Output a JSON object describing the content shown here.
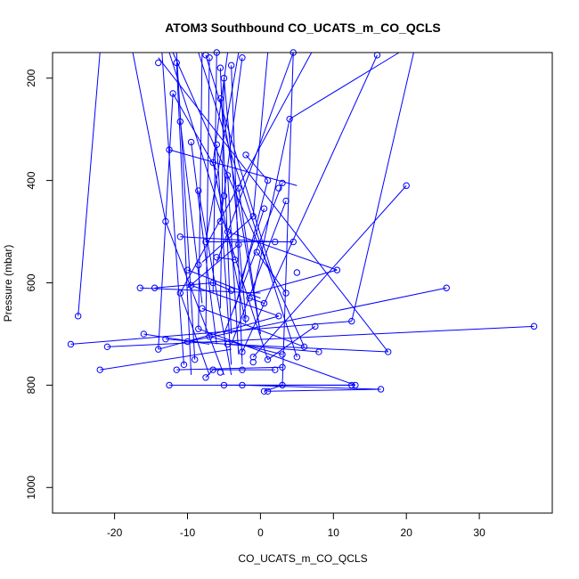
{
  "chart_data": {
    "type": "scatter",
    "title": "ATOM3 Southbound CO_UCATS_m_CO_QCLS",
    "xlabel": "CO_UCATS_m_CO_QCLS",
    "ylabel": "Pressure (mbar)",
    "xlim": [
      -28.5,
      40
    ],
    "ylim": [
      150,
      1050
    ],
    "y_reversed": true,
    "x_ticks": [
      -20,
      -10,
      0,
      10,
      20,
      30
    ],
    "y_ticks": [
      200,
      400,
      600,
      800,
      1000
    ],
    "series_color": "#0000ff",
    "marker": "open-circle",
    "connected": true,
    "points": [
      [
        -6.0,
        150
      ],
      [
        -14.0,
        170
      ],
      [
        -5.5,
        180
      ],
      [
        -4.0,
        175
      ],
      [
        -11.5,
        170
      ],
      [
        -7.0,
        160
      ],
      [
        -5.0,
        200
      ],
      [
        -11.0,
        285
      ],
      [
        -9.5,
        325
      ],
      [
        -12.5,
        340
      ],
      [
        -6.5,
        365
      ],
      [
        -8.5,
        420
      ],
      [
        -4.5,
        390
      ],
      [
        -3.0,
        415
      ],
      [
        -5.0,
        430
      ],
      [
        -2.0,
        350
      ],
      [
        1.0,
        400
      ],
      [
        4.0,
        280
      ],
      [
        3.0,
        405
      ],
      [
        2.5,
        415
      ],
      [
        3.5,
        440
      ],
      [
        0.5,
        455
      ],
      [
        -1.0,
        470
      ],
      [
        -5.5,
        480
      ],
      [
        -13.0,
        480
      ],
      [
        -11.0,
        510
      ],
      [
        -7.5,
        520
      ],
      [
        -3.0,
        525
      ],
      [
        -0.5,
        540
      ],
      [
        2.0,
        520
      ],
      [
        4.5,
        520
      ],
      [
        5.0,
        580
      ],
      [
        3.5,
        620
      ],
      [
        10.5,
        575
      ],
      [
        -10.0,
        575
      ],
      [
        -8.5,
        565
      ],
      [
        -16.5,
        610
      ],
      [
        -14.5,
        610
      ],
      [
        -11.0,
        620
      ],
      [
        -9.5,
        605
      ],
      [
        -6.5,
        600
      ],
      [
        -4.0,
        615
      ],
      [
        -1.5,
        630
      ],
      [
        0.5,
        640
      ],
      [
        2.5,
        665
      ],
      [
        -25.0,
        665
      ],
      [
        -26.0,
        720
      ],
      [
        -21.0,
        725
      ],
      [
        -16.0,
        700
      ],
      [
        -13.0,
        710
      ],
      [
        -10.0,
        715
      ],
      [
        -8.5,
        690
      ],
      [
        -7.0,
        705
      ],
      [
        -4.5,
        720
      ],
      [
        -2.5,
        735
      ],
      [
        -1.0,
        745
      ],
      [
        1.0,
        750
      ],
      [
        3.0,
        740
      ],
      [
        5.0,
        745
      ],
      [
        8.0,
        735
      ],
      [
        12.5,
        675
      ],
      [
        25.5,
        610
      ],
      [
        37.5,
        685
      ],
      [
        7.5,
        685
      ],
      [
        6.0,
        725
      ],
      [
        -22.0,
        770
      ],
      [
        -14.0,
        730
      ],
      [
        -11.5,
        770
      ],
      [
        -10.5,
        760
      ],
      [
        -9.0,
        750
      ],
      [
        -7.5,
        785
      ],
      [
        -6.5,
        770
      ],
      [
        -5.5,
        775
      ],
      [
        -2.5,
        770
      ],
      [
        -1.0,
        755
      ],
      [
        2.0,
        770
      ],
      [
        3.0,
        765
      ],
      [
        -12.5,
        800
      ],
      [
        -5.0,
        800
      ],
      [
        -2.5,
        800
      ],
      [
        0.5,
        812
      ],
      [
        1.0,
        812
      ],
      [
        3.0,
        800
      ],
      [
        12.5,
        800
      ],
      [
        13.0,
        800
      ],
      [
        16.5,
        808
      ],
      [
        17.5,
        735
      ],
      [
        20.0,
        410
      ],
      [
        16.0,
        155
      ],
      [
        4.5,
        150
      ],
      [
        -7.5,
        155
      ],
      [
        -2.5,
        160
      ],
      [
        -6.0,
        330
      ],
      [
        -5.5,
        240
      ],
      [
        -12.0,
        230
      ],
      [
        -4.5,
        500
      ],
      [
        -3.5,
        555
      ],
      [
        -6.0,
        550
      ],
      [
        -8.0,
        650
      ],
      [
        -2.0,
        670
      ]
    ],
    "segments": [
      [
        -6.0,
        150,
        -6.5,
        620
      ],
      [
        -5.5,
        180,
        -4.0,
        700
      ],
      [
        -4.0,
        175,
        -2.5,
        760
      ],
      [
        -11.5,
        170,
        -9.5,
        780
      ],
      [
        -7.0,
        160,
        -7.5,
        700
      ],
      [
        -5.0,
        200,
        -5.5,
        650
      ],
      [
        -11.0,
        285,
        -8.0,
        640
      ],
      [
        -9.5,
        325,
        -6.0,
        720
      ],
      [
        -12.5,
        340,
        5.0,
        410
      ],
      [
        -6.5,
        365,
        -2.0,
        680
      ],
      [
        -8.5,
        420,
        -4.0,
        780
      ],
      [
        -4.5,
        390,
        -3.0,
        740
      ],
      [
        -3.0,
        415,
        0.0,
        700
      ],
      [
        -2.0,
        350,
        1.0,
        400
      ],
      [
        1.0,
        400,
        -3.5,
        650
      ],
      [
        4.0,
        280,
        -1.0,
        620
      ],
      [
        3.0,
        405,
        -5.0,
        700
      ],
      [
        3.5,
        440,
        -4.0,
        720
      ],
      [
        0.5,
        455,
        -3.0,
        610
      ],
      [
        -1.0,
        470,
        -8.0,
        560
      ],
      [
        -13.0,
        480,
        -5.0,
        780
      ],
      [
        -11.0,
        510,
        2.0,
        520
      ],
      [
        -7.5,
        520,
        4.5,
        520
      ],
      [
        -3.0,
        525,
        -10.0,
        610
      ],
      [
        -0.5,
        540,
        3.5,
        620
      ],
      [
        10.5,
        575,
        -1.0,
        620
      ],
      [
        -10.0,
        575,
        0.0,
        630
      ],
      [
        -16.5,
        610,
        0.0,
        620
      ],
      [
        -14.5,
        610,
        -6.5,
        600
      ],
      [
        -11.0,
        620,
        -7.0,
        780
      ],
      [
        -25.0,
        665,
        -22.0,
        150
      ],
      [
        -26.0,
        720,
        12.5,
        675
      ],
      [
        -21.0,
        725,
        37.5,
        685
      ],
      [
        -16.0,
        700,
        -7.0,
        720
      ],
      [
        -13.0,
        710,
        8.0,
        735
      ],
      [
        -10.0,
        715,
        25.5,
        610
      ],
      [
        -8.5,
        690,
        13.0,
        800
      ],
      [
        -7.0,
        705,
        3.0,
        740
      ],
      [
        -4.5,
        720,
        17.5,
        735
      ],
      [
        -2.5,
        735,
        16.0,
        155
      ],
      [
        -1.0,
        745,
        20.0,
        410
      ],
      [
        1.0,
        750,
        7.5,
        685
      ],
      [
        5.0,
        745,
        -8.5,
        150
      ],
      [
        6.0,
        725,
        -12.0,
        150
      ],
      [
        -22.0,
        770,
        -4.0,
        730
      ],
      [
        -14.0,
        730,
        -12.0,
        230
      ],
      [
        -11.5,
        770,
        3.0,
        765
      ],
      [
        -10.5,
        760,
        -13.5,
        150
      ],
      [
        -9.0,
        750,
        -11.5,
        150
      ],
      [
        -7.5,
        785,
        -6.5,
        770
      ],
      [
        -6.5,
        770,
        2.0,
        770
      ],
      [
        -12.5,
        800,
        13.0,
        800
      ],
      [
        -5.0,
        800,
        12.5,
        800
      ],
      [
        -2.5,
        800,
        16.5,
        808
      ],
      [
        0.5,
        812,
        3.0,
        800
      ],
      [
        1.0,
        812,
        16.5,
        808
      ],
      [
        3.0,
        800,
        4.5,
        150
      ],
      [
        4.5,
        150,
        -6.0,
        560
      ],
      [
        -7.5,
        155,
        2.0,
        600
      ],
      [
        -2.5,
        160,
        -5.5,
        480
      ],
      [
        -6.0,
        330,
        -4.0,
        760
      ],
      [
        -5.5,
        240,
        0.0,
        700
      ],
      [
        -12.0,
        230,
        -6.0,
        380
      ],
      [
        -4.5,
        500,
        10.5,
        575
      ],
      [
        -3.5,
        555,
        -6.0,
        550
      ],
      [
        -8.0,
        650,
        6.0,
        725
      ],
      [
        -2.0,
        670,
        -5.0,
        200
      ],
      [
        -9.5,
        605,
        2.5,
        665
      ],
      [
        -6.5,
        600,
        -4.0,
        615
      ],
      [
        -1.5,
        630,
        0.5,
        640
      ],
      [
        2.5,
        665,
        -14.0,
        730
      ],
      [
        -17.5,
        150,
        -13.0,
        480
      ],
      [
        -14.0,
        160,
        17.5,
        735
      ],
      [
        -8.0,
        150,
        -8.5,
        690
      ],
      [
        -4.5,
        150,
        -6.5,
        365
      ],
      [
        -3.0,
        150,
        -7.5,
        520
      ],
      [
        1.0,
        150,
        -1.0,
        470
      ],
      [
        7.0,
        150,
        -11.0,
        620
      ],
      [
        19.0,
        150,
        4.0,
        280
      ],
      [
        21.0,
        150,
        12.5,
        675
      ],
      [
        -12.5,
        150,
        1.0,
        750
      ]
    ]
  }
}
